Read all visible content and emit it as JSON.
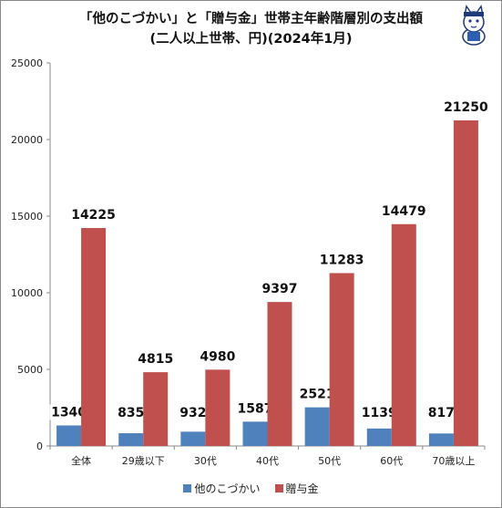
{
  "chart_data": {
    "type": "bar",
    "title": "「他のこづかい」と「贈与金」世帯主年齢階層別の支出額",
    "subtitle": "(二人以上世帯、円)(2024年1月)",
    "categories": [
      "全体",
      "29歳以下",
      "30代",
      "40代",
      "50代",
      "60代",
      "70歳以上"
    ],
    "series": [
      {
        "name": "他のこづかい",
        "color": "#4f81bd",
        "values": [
          1340,
          835,
          932,
          1587,
          2521,
          1139,
          817
        ]
      },
      {
        "name": "贈与金",
        "color": "#c0504d",
        "values": [
          14225,
          4815,
          4980,
          9397,
          11283,
          14479,
          21250
        ]
      }
    ],
    "yticks": [
      "0",
      "5000",
      "10000",
      "15000",
      "20000",
      "25000"
    ],
    "ylim": [
      0,
      25000
    ],
    "grid": false,
    "legend_position": "bottom"
  }
}
